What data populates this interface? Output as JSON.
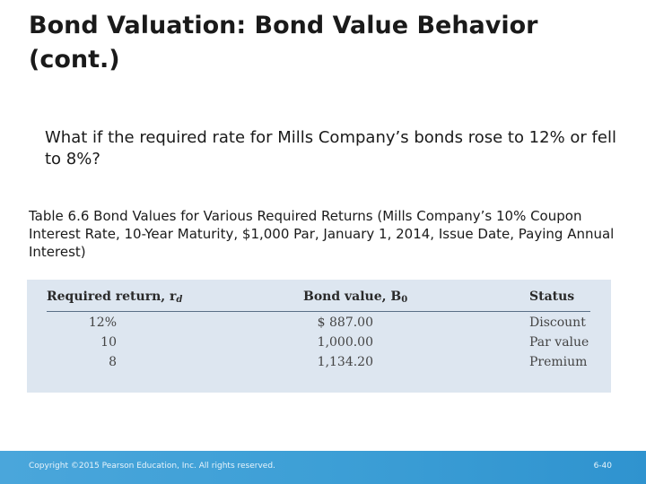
{
  "slide": {
    "title": "Bond Valuation: Bond Value Behavior (cont.)",
    "question": "What if the required rate for Mills Company’s bonds rose to 12% or fell to 8%?",
    "caption": "Table 6.6 Bond Values for Various Required Returns (Mills Company’s 10% Coupon Interest Rate, 10-Year Maturity, $1,000 Par, January 1, 2014, Issue Date, Paying Annual Interest)"
  },
  "table": {
    "headers": {
      "required_return": "Required return, r",
      "required_return_sub": "d",
      "bond_value": "Bond value, B",
      "bond_value_sub": "0",
      "status": "Status"
    },
    "rows": [
      {
        "required_return": "12%",
        "bond_value": "$  887.00",
        "status": "Discount"
      },
      {
        "required_return": "10",
        "bond_value": "1,000.00",
        "status": "Par value"
      },
      {
        "required_return": "8",
        "bond_value": "1,134.20",
        "status": "Premium"
      }
    ]
  },
  "footer": {
    "copyright": "Copyright ©2015 Pearson Education, Inc. All rights reserved.",
    "page_number": "6-40"
  }
}
